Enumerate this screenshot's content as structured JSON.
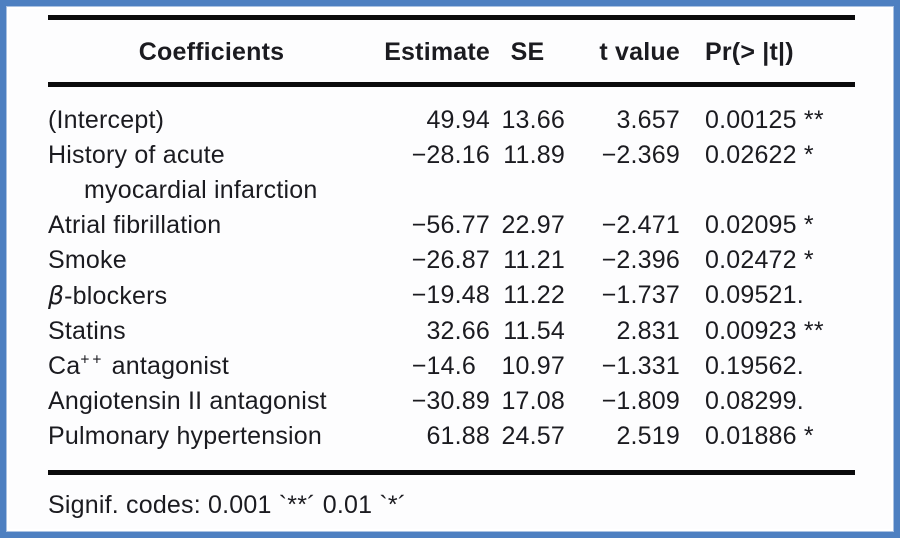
{
  "table": {
    "headers": {
      "coefficients": "Coefficients",
      "estimate": "Estimate",
      "se": "SE",
      "t_value": "t value",
      "pr": "Pr(> |t|)"
    },
    "rows": [
      {
        "name": "(Intercept)",
        "estimate": "49.94",
        "se": "13.66",
        "t": "3.657",
        "p": "0.00125",
        "sig": " **"
      },
      {
        "name": "History of acute",
        "name2": "myocardial infarction",
        "estimate": "−28.16",
        "se": "11.89",
        "t": "−2.369",
        "p": "0.02622",
        "sig": " *"
      },
      {
        "name": "Atrial fibrillation",
        "estimate": "−56.77",
        "se": "22.97",
        "t": "−2.471",
        "p": "0.02095",
        "sig": " *"
      },
      {
        "name": "Smoke",
        "estimate": "−26.87",
        "se": "11.21",
        "t": "−2.396",
        "p": "0.02472",
        "sig": " *"
      },
      {
        "name_italic": "β",
        "name_rest": "-blockers",
        "estimate": "−19.48",
        "se": "11.22",
        "t": "−1.737",
        "p": "0.09521",
        "sig": "."
      },
      {
        "name": "Statins",
        "estimate": "32.66",
        "se": "11.54",
        "t": "2.831",
        "p": "0.00923",
        "sig": " **"
      },
      {
        "name_base": "Ca",
        "name_sup": "++",
        "name_rest": " antagonist",
        "estimate": "−14.6",
        "se": "10.97",
        "t": "−1.331",
        "p": "0.19562",
        "sig": "."
      },
      {
        "name": "Angiotensin II antagonist",
        "estimate": "−30.89",
        "se": "17.08",
        "t": "−1.809",
        "p": "0.08299",
        "sig": "."
      },
      {
        "name": "Pulmonary hypertension",
        "estimate": "61.88",
        "se": "24.57",
        "t": "2.519",
        "p": "0.01886",
        "sig": " *"
      }
    ]
  },
  "footer": {
    "signif_codes": "Signif. codes: 0.001 `**´ 0.01 `*´"
  },
  "colors": {
    "frame_blue": "#4e80c1",
    "rule_black": "#0b0b0c",
    "text": "#1b1b20",
    "background": "#fdfdfe"
  }
}
